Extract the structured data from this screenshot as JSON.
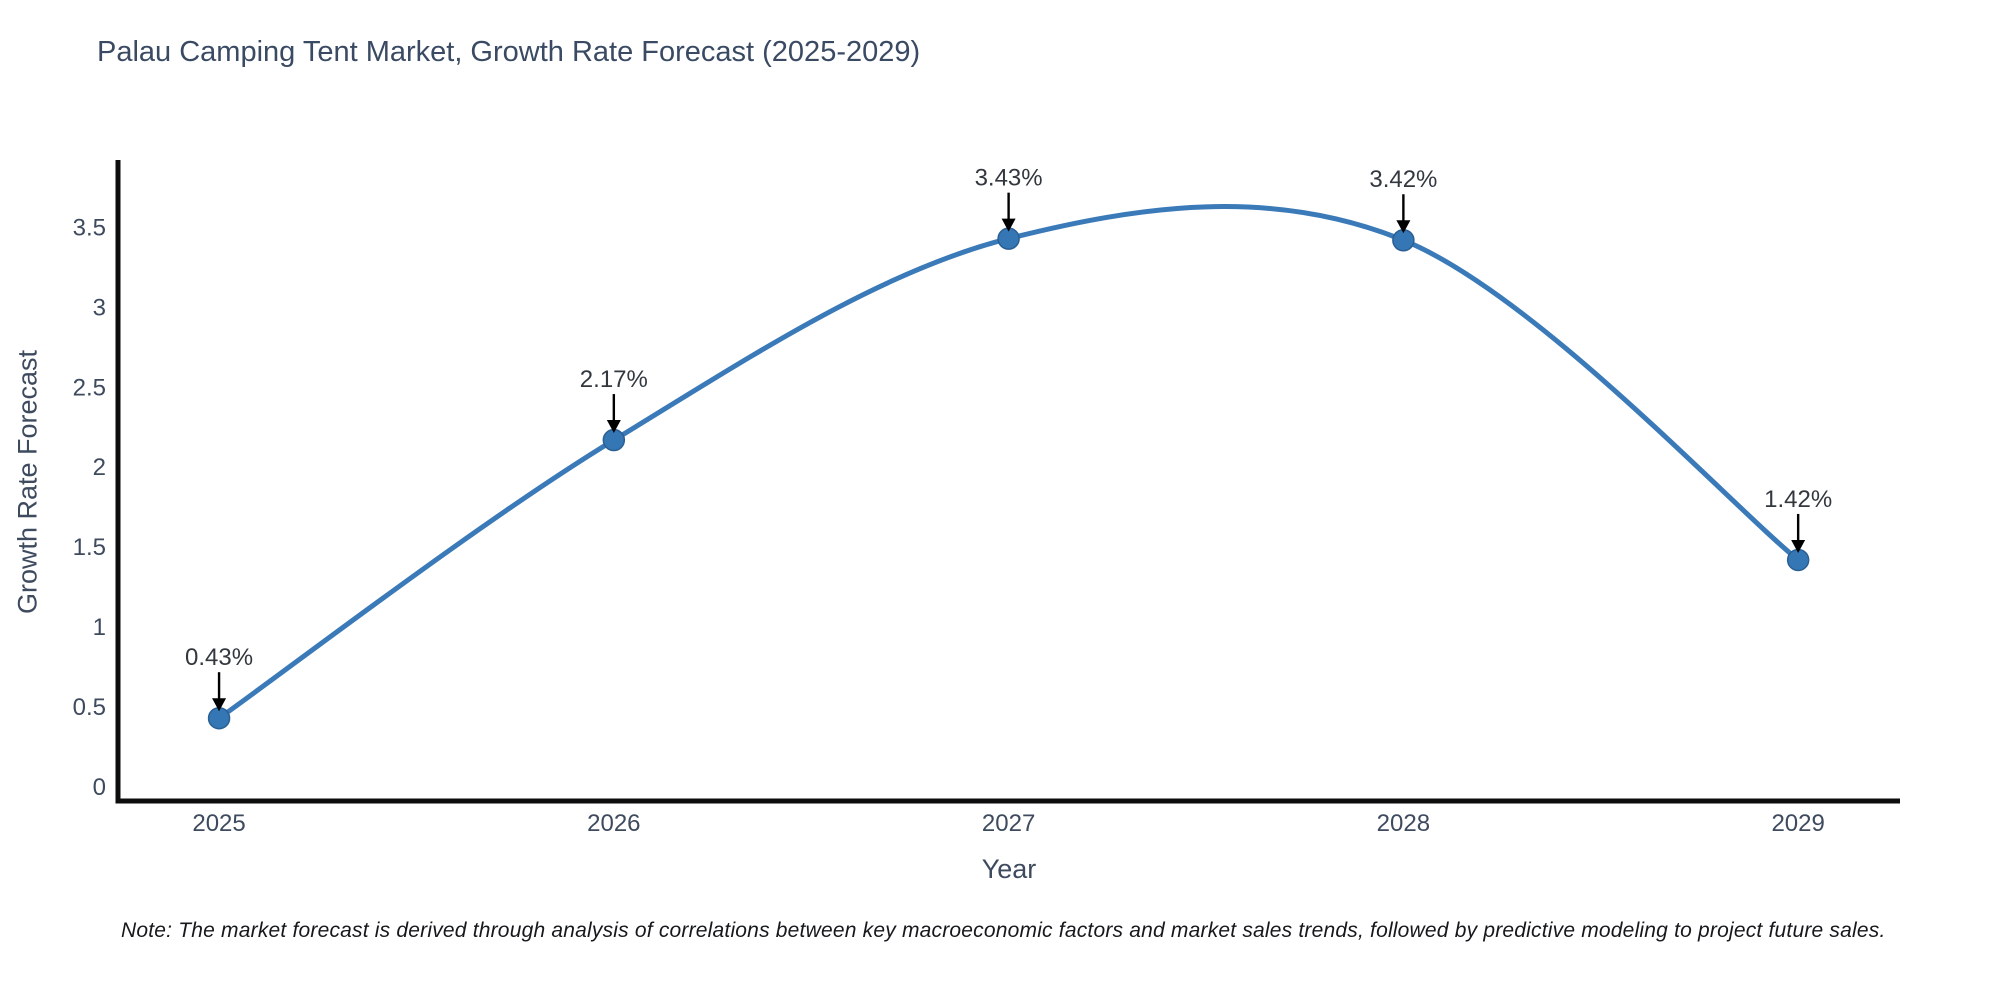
{
  "note": "Note: The market forecast is derived through analysis of correlations between key macroeconomic factors and market sales trends, followed by predictive modeling to project future sales.",
  "chart_data": {
    "type": "line",
    "title": "Palau Camping Tent Market, Growth Rate Forecast (2025-2029)",
    "xlabel": "Year",
    "ylabel": "Growth Rate Forecast",
    "x": [
      2025,
      2026,
      2027,
      2028,
      2029
    ],
    "values": [
      0.43,
      2.17,
      3.43,
      3.42,
      1.42
    ],
    "point_labels": [
      "0.43%",
      "2.17%",
      "3.43%",
      "3.42%",
      "1.42%"
    ],
    "xticks": [
      2025,
      2026,
      2027,
      2028,
      2029
    ],
    "yticks": [
      0,
      0.5,
      1,
      1.5,
      2,
      2.5,
      3,
      3.5
    ],
    "xlim": [
      2024.744,
      2029.258
    ],
    "ylim": [
      -0.088,
      3.922
    ],
    "grid": false,
    "legend": null,
    "smooth": true,
    "colors": {
      "line": "#3b7ab8",
      "marker": "#3577b4",
      "marker_edge": "#2a5f94",
      "axis": "#0d0d0d",
      "tick_text": "#3e4a5e",
      "title_text": "#3a4a63",
      "annotation_text": "#33383f",
      "arrow": "#000000"
    }
  }
}
